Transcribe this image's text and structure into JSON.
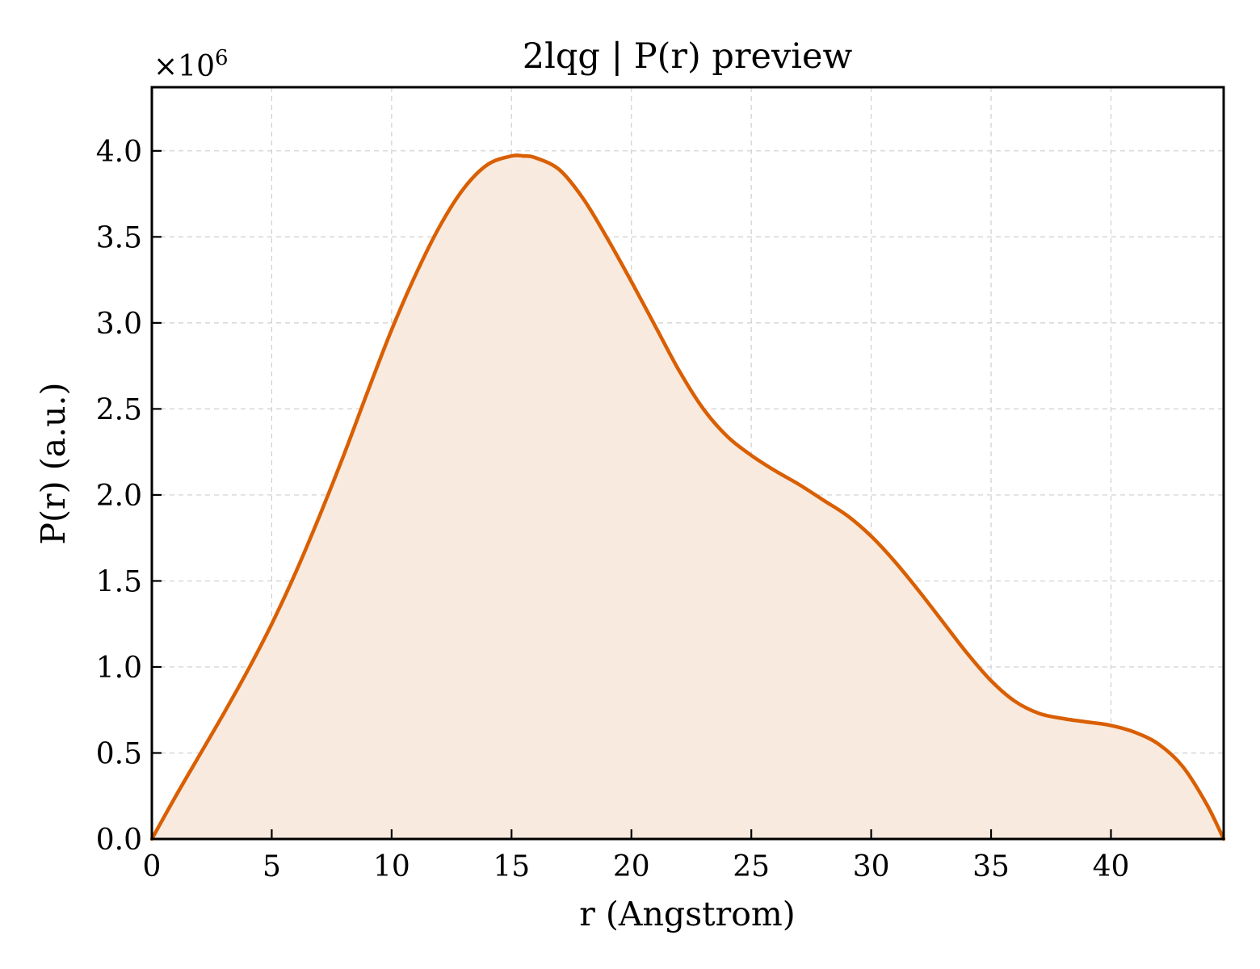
{
  "chart_data": {
    "type": "area",
    "title": "2lqg | P(r) preview",
    "xlabel": "r (Angstrom)",
    "ylabel": "P(r) (a.u.)",
    "y_multiplier_label": "×10",
    "y_multiplier_exponent": "6",
    "xlim": [
      0,
      44.7
    ],
    "ylim": [
      0,
      4.37
    ],
    "x_ticks": [
      0,
      5,
      10,
      15,
      20,
      25,
      30,
      35,
      40
    ],
    "x_tick_labels": [
      "0",
      "5",
      "10",
      "15",
      "20",
      "25",
      "30",
      "35",
      "40"
    ],
    "y_ticks": [
      0,
      0.5,
      1.0,
      1.5,
      2.0,
      2.5,
      3.0,
      3.5,
      4.0
    ],
    "y_tick_labels": [
      "0.0",
      "0.5",
      "1.0",
      "1.5",
      "2.0",
      "2.5",
      "3.0",
      "3.5",
      "4.0"
    ],
    "grid": true,
    "line_color": "#d95f02",
    "fill_color": "#f9eadf",
    "series": [
      {
        "x": [
          0,
          1,
          2,
          3,
          4,
          5,
          6,
          7,
          8,
          9,
          10,
          11,
          12,
          13,
          14,
          15,
          15.5,
          16,
          17,
          18,
          19,
          20,
          21,
          22,
          23,
          24,
          25,
          26,
          27,
          28,
          29,
          30,
          31,
          32,
          33,
          34,
          35,
          36,
          37,
          38,
          39,
          40,
          41,
          42,
          43,
          44,
          44.7
        ],
        "y": [
          0.0,
          0.25,
          0.49,
          0.73,
          0.98,
          1.25,
          1.55,
          1.88,
          2.23,
          2.6,
          2.96,
          3.28,
          3.56,
          3.78,
          3.92,
          3.97,
          3.97,
          3.96,
          3.89,
          3.72,
          3.49,
          3.24,
          2.98,
          2.72,
          2.5,
          2.34,
          2.23,
          2.14,
          2.06,
          1.97,
          1.88,
          1.76,
          1.61,
          1.44,
          1.26,
          1.08,
          0.92,
          0.8,
          0.73,
          0.7,
          0.68,
          0.66,
          0.62,
          0.55,
          0.42,
          0.2,
          0.0
        ]
      }
    ]
  }
}
